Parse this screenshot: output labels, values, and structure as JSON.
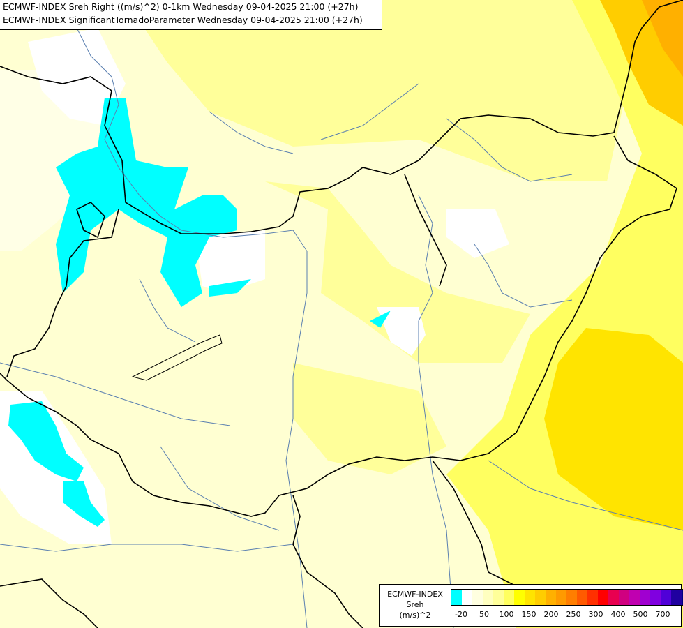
{
  "header": {
    "line1": "ECMWF-INDEX Sreh Right ((m/s)^2) 0-1km Wednesday 09-04-2025 21:00 (+27h)",
    "line2": "ECMWF-INDEX SignificantTornadoParameter Wednesday 09-04-2025 21:00 (+27h)"
  },
  "legend": {
    "title1": "ECMWF-INDEX",
    "title2": "Sreh",
    "title3": "(m/s)^2",
    "colors": [
      "#00ffff",
      "#ffffff",
      "#ffffe0",
      "#ffffc0",
      "#ffff9a",
      "#ffff60",
      "#ffff00",
      "#ffe400",
      "#ffcd00",
      "#ffb000",
      "#ff9a00",
      "#ff7e00",
      "#ff5a00",
      "#ff3000",
      "#ff0000",
      "#e80050",
      "#d00080",
      "#c000b0",
      "#a000d0",
      "#8000e0",
      "#5000d8",
      "#2000a0",
      "#000080"
    ],
    "ticks": [
      "-20",
      "50",
      "100",
      "150",
      "200",
      "250",
      "300",
      "400",
      "500",
      "700"
    ]
  }
}
